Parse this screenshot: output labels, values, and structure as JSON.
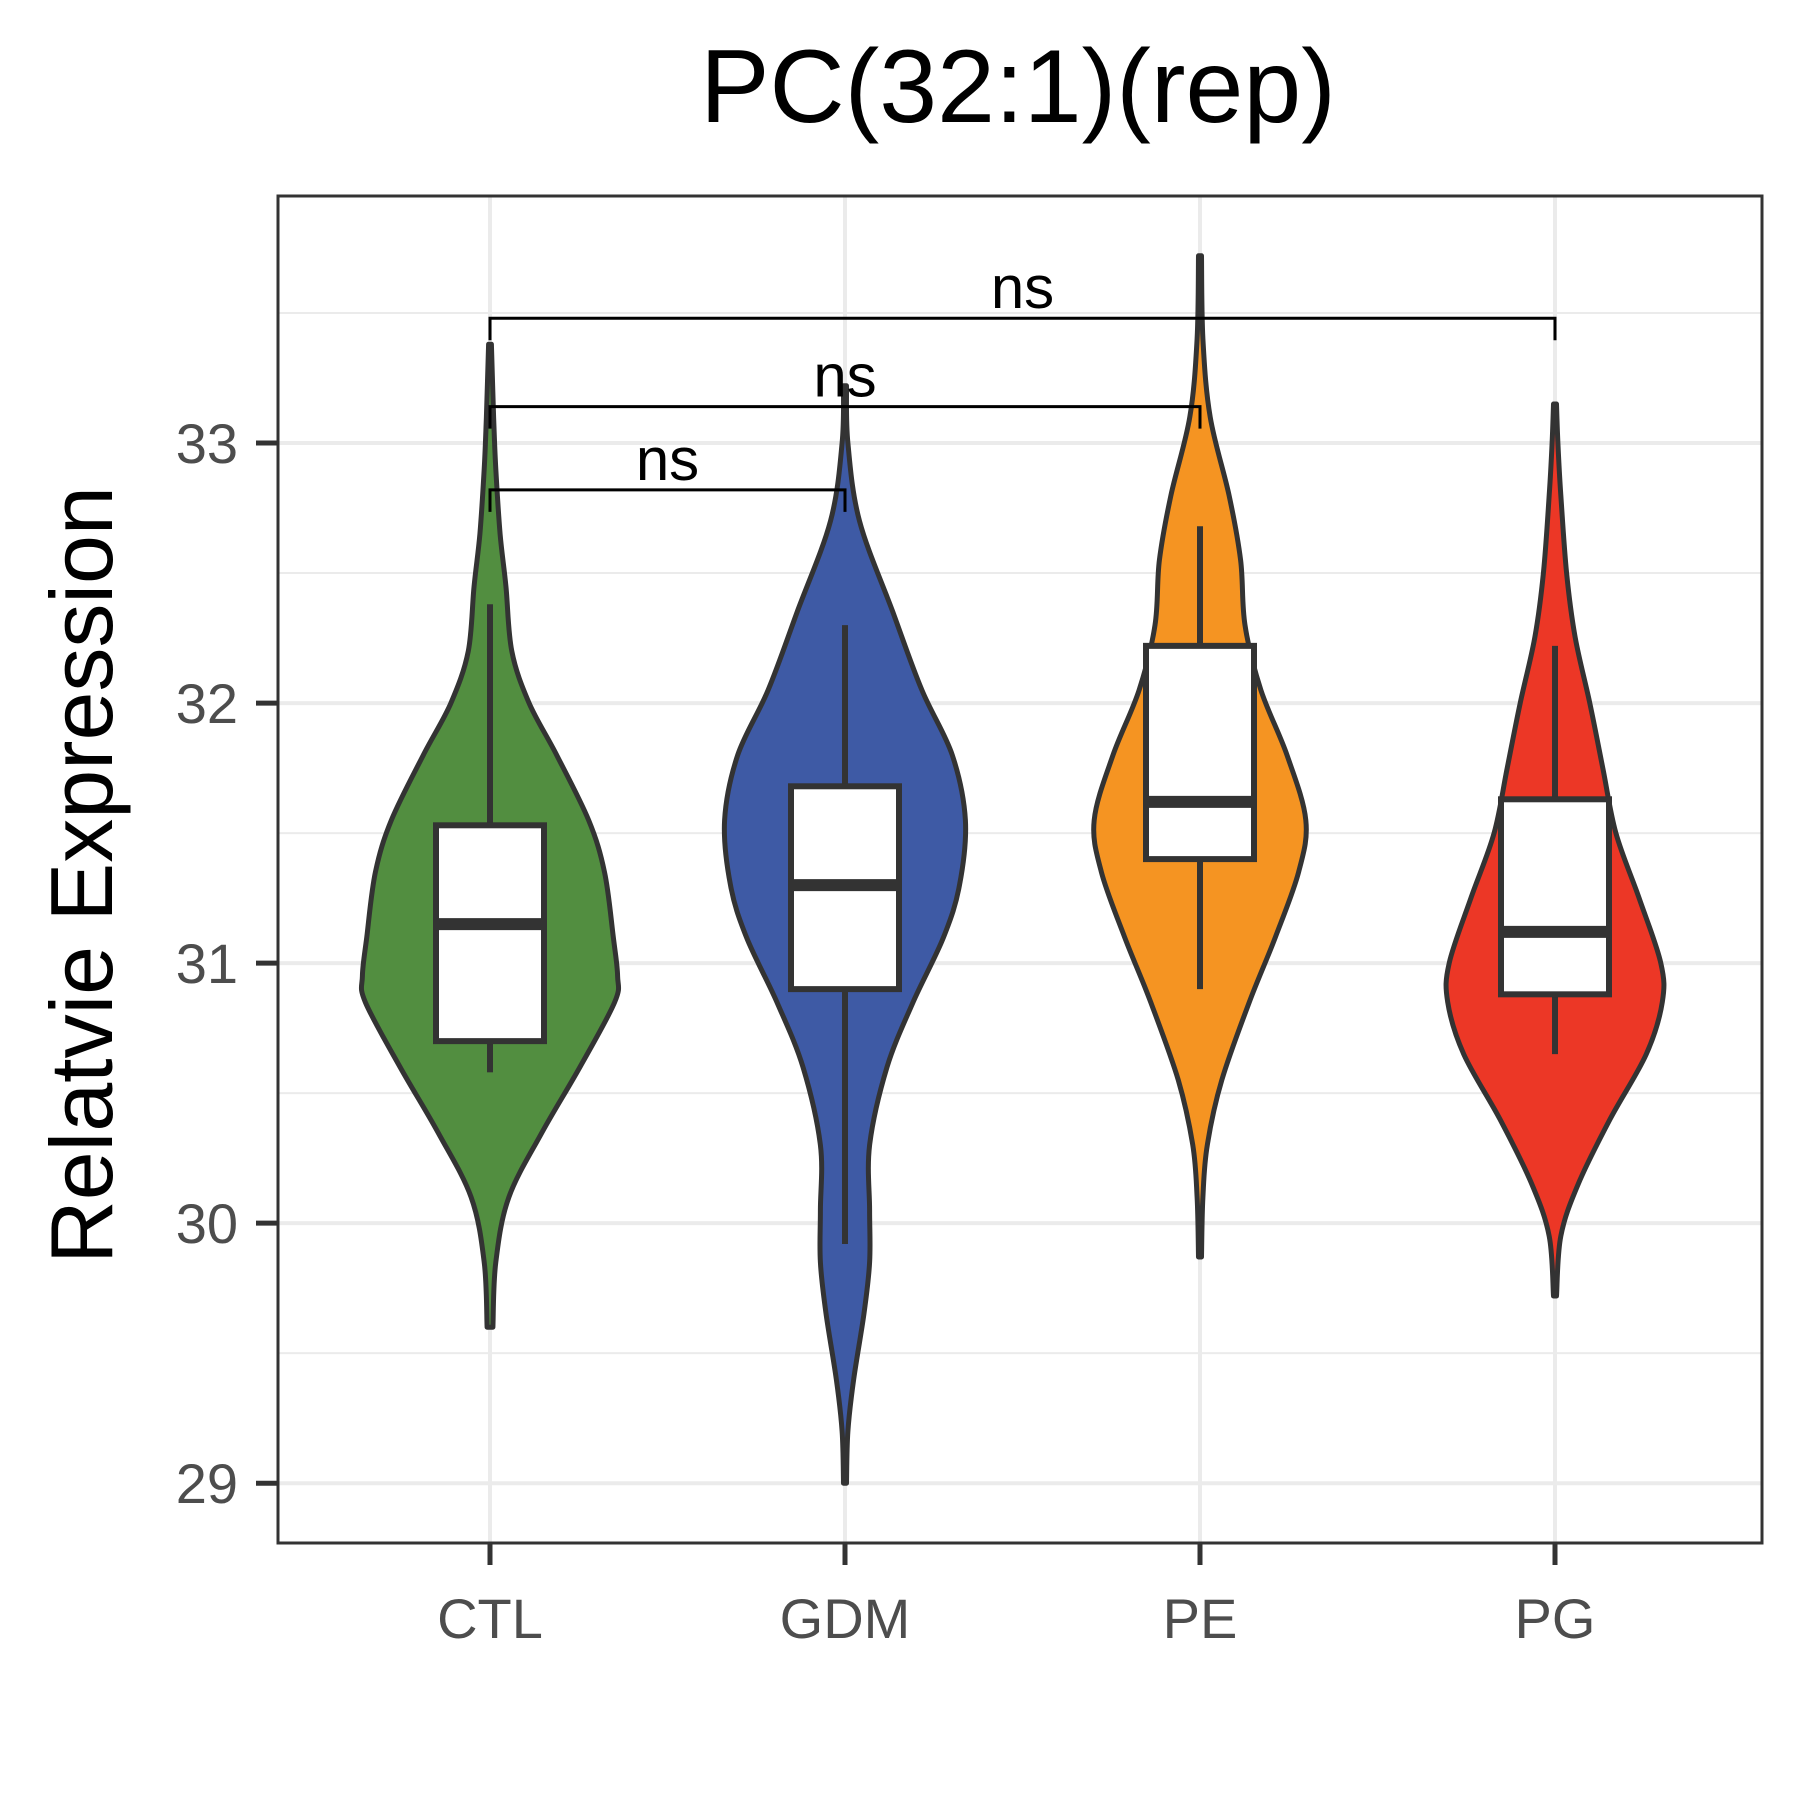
{
  "chart_data": {
    "type": "violin",
    "title": "PC(32:1)(rep)",
    "xlabel": "",
    "ylabel": "Relatvie Expression",
    "ylim": [
      28.77,
      33.95
    ],
    "yticks": [
      29,
      30,
      31,
      32,
      33
    ],
    "grid": true,
    "legend": "none",
    "categories": [
      "CTL",
      "GDM",
      "PE",
      "PG"
    ],
    "colors": [
      "#528e40",
      "#3e5aa5",
      "#f59422",
      "#ec3726"
    ],
    "outline_color": "#333333",
    "groups": [
      {
        "name": "CTL",
        "min": 29.6,
        "max": 33.38,
        "box": {
          "whisker_low": 30.58,
          "q1": 30.7,
          "median": 31.15,
          "q3": 31.53,
          "whisker_high": 32.38
        },
        "density": [
          [
            29.6,
            0.02
          ],
          [
            29.85,
            0.04
          ],
          [
            30.1,
            0.13
          ],
          [
            30.35,
            0.36
          ],
          [
            30.6,
            0.62
          ],
          [
            30.85,
            0.86
          ],
          [
            30.95,
            0.88
          ],
          [
            31.1,
            0.85
          ],
          [
            31.35,
            0.79
          ],
          [
            31.55,
            0.68
          ],
          [
            31.8,
            0.46
          ],
          [
            32.0,
            0.27
          ],
          [
            32.2,
            0.15
          ],
          [
            32.45,
            0.11
          ],
          [
            32.65,
            0.07
          ],
          [
            32.9,
            0.04
          ],
          [
            33.1,
            0.025
          ],
          [
            33.38,
            0.01
          ]
        ]
      },
      {
        "name": "GDM",
        "min": 29.0,
        "max": 33.22,
        "box": {
          "whisker_low": 29.92,
          "q1": 30.9,
          "median": 31.3,
          "q3": 31.68,
          "whisker_high": 32.3
        },
        "density": [
          [
            29.0,
            0.01
          ],
          [
            29.2,
            0.02
          ],
          [
            29.4,
            0.06
          ],
          [
            29.65,
            0.13
          ],
          [
            29.85,
            0.17
          ],
          [
            30.05,
            0.17
          ],
          [
            30.3,
            0.17
          ],
          [
            30.6,
            0.29
          ],
          [
            30.85,
            0.47
          ],
          [
            31.1,
            0.68
          ],
          [
            31.3,
            0.79
          ],
          [
            31.55,
            0.83
          ],
          [
            31.8,
            0.74
          ],
          [
            32.05,
            0.53
          ],
          [
            32.35,
            0.33
          ],
          [
            32.7,
            0.1
          ],
          [
            33.0,
            0.02
          ],
          [
            33.22,
            0.01
          ]
        ]
      },
      {
        "name": "PE",
        "min": 29.87,
        "max": 33.72,
        "box": {
          "whisker_low": 30.9,
          "q1": 31.4,
          "median": 31.62,
          "q3": 32.22,
          "whisker_high": 32.68
        },
        "density": [
          [
            29.87,
            0.01
          ],
          [
            30.1,
            0.02
          ],
          [
            30.3,
            0.05
          ],
          [
            30.55,
            0.15
          ],
          [
            30.85,
            0.34
          ],
          [
            31.1,
            0.52
          ],
          [
            31.35,
            0.68
          ],
          [
            31.55,
            0.73
          ],
          [
            31.8,
            0.6
          ],
          [
            32.05,
            0.42
          ],
          [
            32.3,
            0.31
          ],
          [
            32.55,
            0.28
          ],
          [
            32.8,
            0.2
          ],
          [
            33.1,
            0.07
          ],
          [
            33.4,
            0.02
          ],
          [
            33.72,
            0.01
          ]
        ]
      },
      {
        "name": "PG",
        "min": 29.72,
        "max": 33.15,
        "box": {
          "whisker_low": 30.65,
          "q1": 30.88,
          "median": 31.12,
          "q3": 31.63,
          "whisker_high": 32.22
        },
        "density": [
          [
            29.72,
            0.01
          ],
          [
            29.95,
            0.04
          ],
          [
            30.15,
            0.16
          ],
          [
            30.4,
            0.38
          ],
          [
            30.65,
            0.63
          ],
          [
            30.85,
            0.74
          ],
          [
            31.0,
            0.73
          ],
          [
            31.25,
            0.58
          ],
          [
            31.5,
            0.42
          ],
          [
            31.75,
            0.33
          ],
          [
            32.0,
            0.24
          ],
          [
            32.25,
            0.14
          ],
          [
            32.5,
            0.08
          ],
          [
            32.8,
            0.04
          ],
          [
            33.0,
            0.02
          ],
          [
            33.15,
            0.01
          ]
        ]
      }
    ],
    "comparisons": [
      {
        "from": "CTL",
        "to": "GDM",
        "y": 32.82,
        "label": "ns"
      },
      {
        "from": "CTL",
        "to": "PE",
        "y": 33.14,
        "label": "ns"
      },
      {
        "from": "CTL",
        "to": "PG",
        "y": 33.48,
        "label": "ns"
      }
    ]
  }
}
